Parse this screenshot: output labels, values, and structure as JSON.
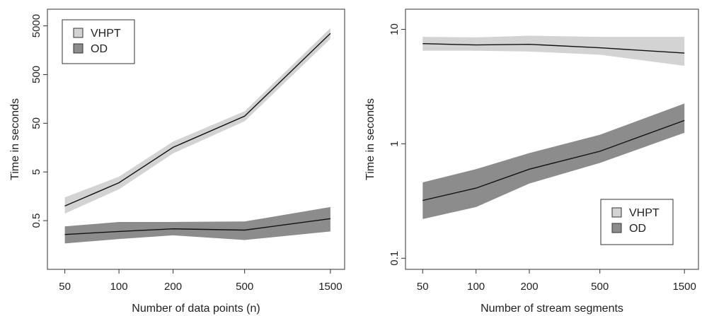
{
  "chart_data": [
    {
      "type": "area",
      "xlabel": "Number of data points (n)",
      "ylabel": "Time in seconds",
      "xscale": "log",
      "yscale": "log",
      "x": [
        50,
        100,
        200,
        500,
        1500
      ],
      "xticks": [
        "50",
        "100",
        "200",
        "500",
        "1500"
      ],
      "yticks": [
        "0.5",
        "5",
        "50",
        "500",
        "5000"
      ],
      "ytick_values": [
        0.5,
        5,
        50,
        500,
        5000
      ],
      "xlim": [
        40,
        1800
      ],
      "ylim": [
        0.05,
        11000
      ],
      "legend": {
        "position": "top-left"
      },
      "series": [
        {
          "name": "VHPT",
          "color": "#d3d3d3",
          "median": [
            1.0,
            3.0,
            16,
            70,
            3500
          ],
          "lower": [
            0.7,
            2.2,
            12,
            55,
            2700
          ],
          "upper": [
            1.5,
            4.0,
            21,
            88,
            4500
          ]
        },
        {
          "name": "OD",
          "color": "#8c8c8c",
          "median": [
            0.26,
            0.3,
            0.34,
            0.32,
            0.55
          ],
          "lower": [
            0.17,
            0.21,
            0.25,
            0.2,
            0.3
          ],
          "upper": [
            0.38,
            0.47,
            0.47,
            0.48,
            0.95
          ]
        }
      ]
    },
    {
      "type": "area",
      "xlabel": "Number of stream segments",
      "ylabel": "Time in seconds",
      "xscale": "log",
      "yscale": "log",
      "x": [
        50,
        100,
        200,
        500,
        1500
      ],
      "xticks": [
        "50",
        "100",
        "200",
        "500",
        "1500"
      ],
      "yticks": [
        "0.1",
        "1",
        "10"
      ],
      "ytick_values": [
        0.1,
        1,
        10
      ],
      "xlim": [
        40,
        1800
      ],
      "ylim": [
        0.08,
        15
      ],
      "legend": {
        "position": "bottom-right"
      },
      "series": [
        {
          "name": "VHPT",
          "color": "#d3d3d3",
          "median": [
            7.5,
            7.3,
            7.4,
            6.9,
            6.2
          ],
          "lower": [
            6.5,
            6.5,
            6.4,
            6.0,
            4.8
          ],
          "upper": [
            8.6,
            8.5,
            8.8,
            8.6,
            8.6
          ]
        },
        {
          "name": "OD",
          "color": "#8c8c8c",
          "median": [
            0.32,
            0.41,
            0.6,
            0.86,
            1.6
          ],
          "lower": [
            0.22,
            0.28,
            0.45,
            0.68,
            1.25
          ],
          "upper": [
            0.46,
            0.6,
            0.83,
            1.2,
            2.25
          ]
        }
      ]
    }
  ]
}
